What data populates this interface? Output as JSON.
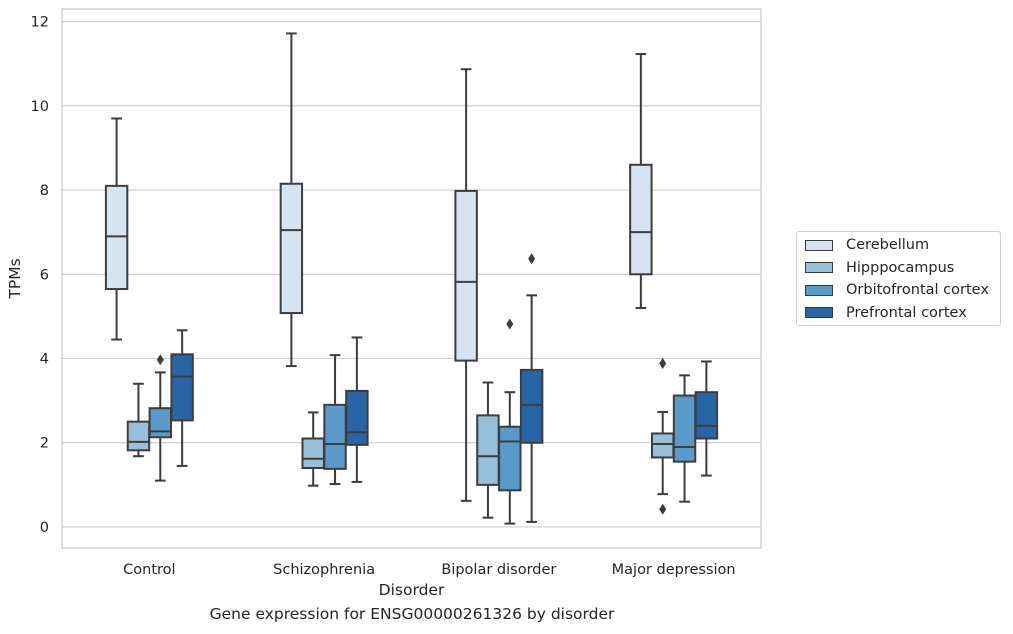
{
  "chart_data": {
    "type": "box",
    "title": "Gene expression for ENSG00000261326 by disorder",
    "xlabel": "Disorder",
    "ylabel": "TPMs",
    "ylim": [
      -0.5,
      12.3
    ],
    "yticks": [
      "0",
      "2",
      "4",
      "6",
      "8",
      "10",
      "12"
    ],
    "grid": "horizontal",
    "legend_position": "right",
    "categories": [
      "Control",
      "Schizophrenia",
      "Bipolar disorder",
      "Major depression"
    ],
    "series": [
      {
        "name": "Cerebellum",
        "color": "#d6e3f1",
        "boxes": [
          {
            "whislo": 4.45,
            "q1": 5.65,
            "med": 6.9,
            "q3": 8.1,
            "whishi": 9.7,
            "fliers": []
          },
          {
            "whislo": 3.82,
            "q1": 5.08,
            "med": 7.05,
            "q3": 8.15,
            "whishi": 11.72,
            "fliers": []
          },
          {
            "whislo": 0.62,
            "q1": 3.95,
            "med": 5.82,
            "q3": 7.98,
            "whishi": 10.87,
            "fliers": []
          },
          {
            "whislo": 5.2,
            "q1": 6.0,
            "med": 7.0,
            "q3": 8.6,
            "whishi": 11.23,
            "fliers": []
          }
        ]
      },
      {
        "name": "Hipppocampus",
        "color": "#97c0dd",
        "boxes": [
          {
            "whislo": 1.68,
            "q1": 1.82,
            "med": 2.02,
            "q3": 2.5,
            "whishi": 3.4,
            "fliers": []
          },
          {
            "whislo": 0.98,
            "q1": 1.4,
            "med": 1.62,
            "q3": 2.1,
            "whishi": 2.72,
            "fliers": []
          },
          {
            "whislo": 0.22,
            "q1": 1.0,
            "med": 1.68,
            "q3": 2.65,
            "whishi": 3.43,
            "fliers": []
          },
          {
            "whislo": 0.78,
            "q1": 1.65,
            "med": 1.97,
            "q3": 2.22,
            "whishi": 2.73,
            "fliers": [
              0.42,
              3.88
            ]
          }
        ]
      },
      {
        "name": "Orbitofrontal cortex",
        "color": "#5a9ac9",
        "boxes": [
          {
            "whislo": 1.1,
            "q1": 2.13,
            "med": 2.27,
            "q3": 2.82,
            "whishi": 3.67,
            "fliers": [
              3.97
            ]
          },
          {
            "whislo": 1.02,
            "q1": 1.38,
            "med": 1.97,
            "q3": 2.9,
            "whishi": 4.08,
            "fliers": []
          },
          {
            "whislo": 0.08,
            "q1": 0.87,
            "med": 2.03,
            "q3": 2.38,
            "whishi": 3.2,
            "fliers": [
              4.82
            ]
          },
          {
            "whislo": 0.6,
            "q1": 1.55,
            "med": 1.9,
            "q3": 3.12,
            "whishi": 3.6,
            "fliers": []
          }
        ]
      },
      {
        "name": "Prefrontal cortex",
        "color": "#2865a6",
        "boxes": [
          {
            "whislo": 1.45,
            "q1": 2.53,
            "med": 3.57,
            "q3": 4.1,
            "whishi": 4.67,
            "fliers": []
          },
          {
            "whislo": 1.07,
            "q1": 1.95,
            "med": 2.25,
            "q3": 3.23,
            "whishi": 4.5,
            "fliers": []
          },
          {
            "whislo": 0.12,
            "q1": 2.0,
            "med": 2.9,
            "q3": 3.73,
            "whishi": 5.5,
            "fliers": [
              6.37
            ]
          },
          {
            "whislo": 1.22,
            "q1": 2.1,
            "med": 2.4,
            "q3": 3.2,
            "whishi": 3.93,
            "fliers": []
          }
        ]
      }
    ]
  }
}
